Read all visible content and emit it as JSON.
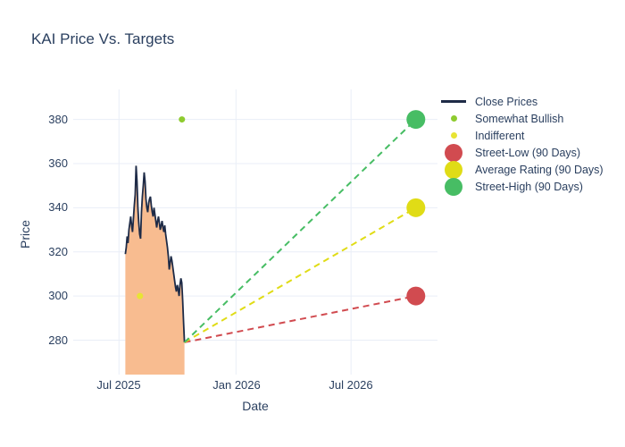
{
  "chart_data": {
    "type": "line",
    "title": "KAI Price Vs. Targets",
    "xlabel": "Date",
    "ylabel": "Price",
    "x_range": [
      "2025-04-20",
      "2026-11-14"
    ],
    "y_range": [
      264.4,
      393.6
    ],
    "y_ticks": [
      380,
      360,
      340,
      320,
      300,
      280
    ],
    "x_ticks": [
      {
        "label": "Jul 2025",
        "date": "2025-07-01"
      },
      {
        "label": "Jan 2026",
        "date": "2026-01-01"
      },
      {
        "label": "Jul 2026",
        "date": "2026-07-01"
      }
    ],
    "grid": true,
    "grid_color": "#e9eef7",
    "font_color": "#2a3f5f",
    "paper_color": "#ffffff",
    "legend_position": "outside-right-top",
    "series": [
      {
        "name": "Close Prices",
        "type": "line",
        "color": "#1e2b47",
        "fill": "tozeroy",
        "fill_color": "#f8bc90",
        "start_date": "2025-07-11",
        "end_date": "2025-10-12",
        "prices": [
          319,
          322,
          327,
          324,
          330,
          333,
          336,
          332,
          329,
          335,
          341,
          346,
          359,
          352,
          340,
          333,
          328,
          326,
          338,
          345,
          350,
          356,
          352,
          344,
          340,
          338,
          342,
          344,
          345,
          341,
          338,
          336,
          340,
          337,
          334,
          331,
          334,
          336,
          333,
          330,
          332,
          334,
          331,
          329,
          332,
          328,
          325,
          322,
          318,
          312,
          315,
          318,
          316,
          313,
          310,
          307,
          304,
          302,
          305,
          303,
          300,
          305,
          308,
          306,
          298,
          288,
          279
        ]
      },
      {
        "name": "Somewhat Bullish",
        "type": "rating",
        "color": "#8ecb2f",
        "marker_radius": 3.5,
        "points": [
          {
            "date": "2025-10-08",
            "price": 380
          }
        ]
      },
      {
        "name": "Indifferent",
        "type": "rating",
        "color": "#e8e434",
        "marker_radius": 3.5,
        "points": [
          {
            "date": "2025-08-03",
            "price": 300
          }
        ]
      },
      {
        "name": "Street-Low (90 Days)",
        "type": "target",
        "color": "#d14b50",
        "marker_radius": 10.5,
        "line_dash": "dash",
        "start": {
          "date": "2025-10-12",
          "price": 279
        },
        "end": {
          "date": "2026-10-11",
          "price": 300
        }
      },
      {
        "name": "Average Rating (90 Days)",
        "type": "target",
        "color": "#e0dc16",
        "marker_radius": 10.5,
        "line_dash": "dash",
        "start": {
          "date": "2025-10-12",
          "price": 279
        },
        "end": {
          "date": "2026-10-11",
          "price": 340
        }
      },
      {
        "name": "Street-High (90 Days)",
        "type": "target",
        "color": "#47bd64",
        "marker_radius": 10.5,
        "line_dash": "dash",
        "start": {
          "date": "2025-10-12",
          "price": 279
        },
        "end": {
          "date": "2026-10-11",
          "price": 380
        }
      }
    ]
  }
}
